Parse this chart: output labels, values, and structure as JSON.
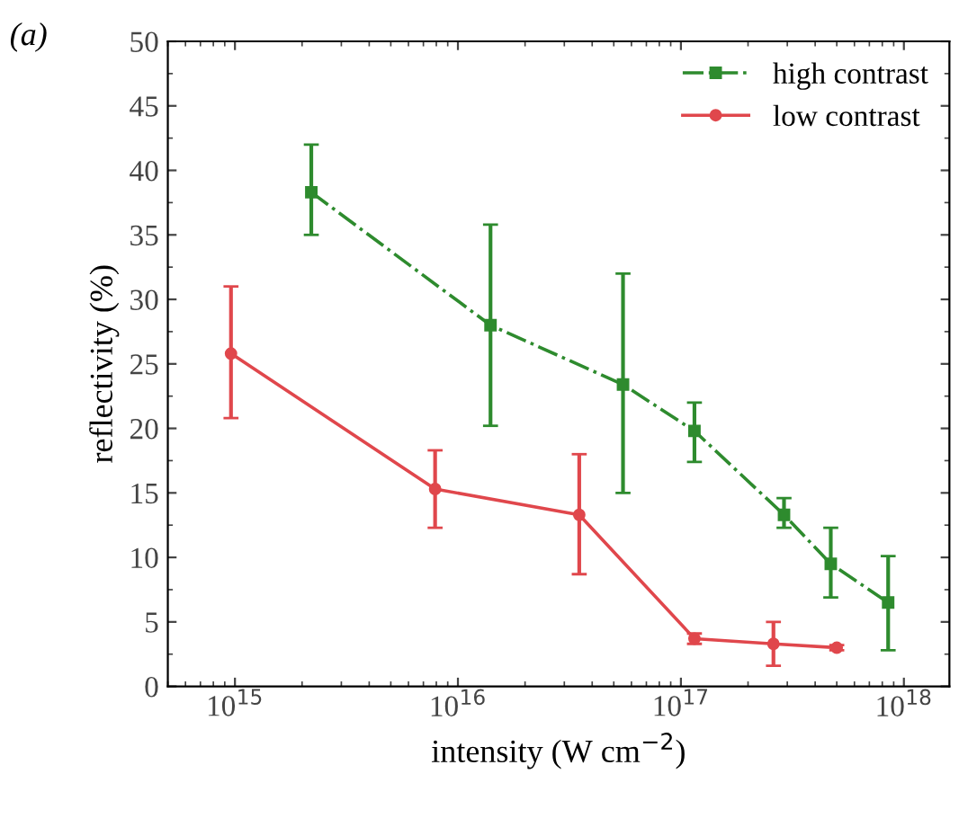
{
  "chart_data": {
    "type": "line",
    "xlabel": "intensity (W cm$^{−2}$)",
    "ylabel": "reflectivity (%)",
    "annotations": [
      "(a)"
    ],
    "log": "x",
    "xlim": [
      500000000000000.0,
      1.6e+18
    ],
    "xticks": [
      {
        "value": 1000000000000000.0,
        "label": "10$^{15}$"
      },
      {
        "value": 1e+16,
        "label": "10$^{16}$"
      },
      {
        "value": 1e+17,
        "label": "10$^{17}$"
      },
      {
        "value": 1e+18,
        "label": "10$^{18}$"
      }
    ],
    "ylim": [
      0,
      50
    ],
    "yticks": [
      0,
      5,
      10,
      15,
      20,
      25,
      30,
      35,
      40,
      45,
      50
    ],
    "grid": false,
    "legend": "top right",
    "series": [
      {
        "name": "high contrast",
        "color": "#2e8b2e",
        "marker": "square",
        "line_style": "dashdot",
        "x": [
          2200000000000000.0,
          1.4e+16,
          5.5e+16,
          1.15e+17,
          2.9e+17,
          4.7e+17,
          8.5e+17
        ],
        "values": [
          38.3,
          28,
          23.4,
          19.8,
          13.3,
          9.5,
          6.5
        ],
        "errors": [
          [
            35,
            42
          ],
          [
            20.2,
            35.8
          ],
          [
            15,
            32
          ],
          [
            17.4,
            22
          ],
          [
            12.3,
            14.6
          ],
          [
            6.9,
            12.3
          ],
          [
            2.8,
            10.1
          ]
        ]
      },
      {
        "name": "low contrast",
        "color": "#e0474c",
        "marker": "circle",
        "line_style": "solid",
        "x": [
          960000000000000.0,
          7900000000000000.0,
          3.5e+16,
          1.15e+17,
          2.6e+17,
          5e+17
        ],
        "values": [
          25.8,
          15.3,
          13.3,
          3.7,
          3.3,
          3.0
        ],
        "errors": [
          [
            20.8,
            31.0
          ],
          [
            12.3,
            18.3
          ],
          [
            8.7,
            18
          ],
          [
            3.3,
            4.1
          ],
          [
            1.6,
            5
          ],
          [
            2.8,
            3.2
          ]
        ]
      }
    ]
  }
}
